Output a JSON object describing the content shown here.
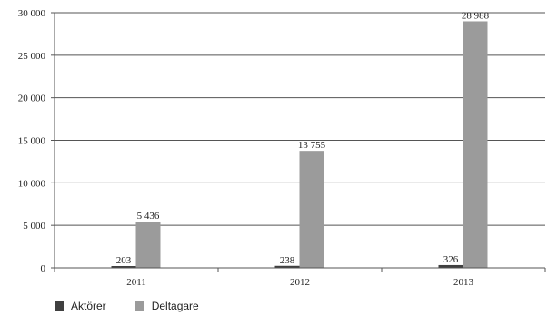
{
  "chart_data": {
    "type": "bar",
    "categories": [
      "2011",
      "2012",
      "2013"
    ],
    "series": [
      {
        "name": "Aktörer",
        "values": [
          203,
          238,
          326
        ],
        "labels": [
          "203",
          "238",
          "326"
        ],
        "color": "#404040"
      },
      {
        "name": "Deltagare",
        "values": [
          5436,
          13755,
          28988
        ],
        "labels": [
          "5 436",
          "13 755",
          "28 988"
        ],
        "color": "#9b9b9b"
      }
    ],
    "yticks": [
      0,
      5000,
      10000,
      15000,
      20000,
      25000,
      30000
    ],
    "ytick_labels": [
      "0",
      "5 000",
      "10 000",
      "15 000",
      "20 000",
      "25 000",
      "30 000"
    ],
    "ylim": [
      0,
      30000
    ],
    "grid": true,
    "legend": "bottom-left",
    "title": "",
    "xlabel": "",
    "ylabel": ""
  }
}
